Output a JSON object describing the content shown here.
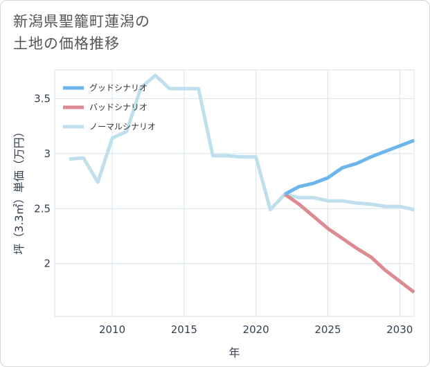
{
  "title_lines": [
    "新潟県聖籠町蓮潟の",
    "土地の価格推移"
  ],
  "chart_data": {
    "type": "line",
    "xlabel": "年",
    "ylabel": "坪（3.3㎡）単価（万円）",
    "xlim": [
      2006,
      2031
    ],
    "ylim": [
      1.52,
      3.76
    ],
    "x_ticks": [
      2010,
      2015,
      2020,
      2025,
      2030
    ],
    "x_tick_labels": [
      "2010",
      "2015",
      "2020",
      "2025",
      "2030"
    ],
    "y_ticks": [
      2,
      2.5,
      3,
      3.5
    ],
    "y_tick_labels": [
      "2",
      "2.5",
      "3",
      "3.5"
    ],
    "grid": true,
    "legend_position": "top-left",
    "series": [
      {
        "name": "グッドシナリオ",
        "color": "#6cb6eb",
        "x": [
          2022,
          2023,
          2024,
          2025,
          2026,
          2027,
          2028,
          2029,
          2030,
          2031
        ],
        "values": [
          2.63,
          2.7,
          2.73,
          2.78,
          2.87,
          2.91,
          2.97,
          3.02,
          3.07,
          3.12
        ]
      },
      {
        "name": "バッドシナリオ",
        "color": "#db8b91",
        "x": [
          2022,
          2023,
          2024,
          2025,
          2026,
          2027,
          2028,
          2029,
          2030,
          2031
        ],
        "values": [
          2.63,
          2.54,
          2.43,
          2.32,
          2.23,
          2.14,
          2.06,
          1.94,
          1.84,
          1.74
        ]
      },
      {
        "name": "ノーマルシナリオ",
        "color": "#bfdfed",
        "x": [
          2007,
          2008,
          2009,
          2010,
          2011,
          2012,
          2013,
          2014,
          2015,
          2016,
          2017,
          2018,
          2019,
          2020,
          2021,
          2022,
          2023,
          2024,
          2025,
          2026,
          2027,
          2028,
          2029,
          2030,
          2031
        ],
        "values": [
          2.95,
          2.96,
          2.74,
          3.14,
          3.2,
          3.6,
          3.71,
          3.59,
          3.59,
          3.59,
          2.98,
          2.98,
          2.97,
          2.97,
          2.49,
          2.63,
          2.6,
          2.6,
          2.57,
          2.57,
          2.55,
          2.54,
          2.52,
          2.52,
          2.49
        ]
      }
    ]
  }
}
